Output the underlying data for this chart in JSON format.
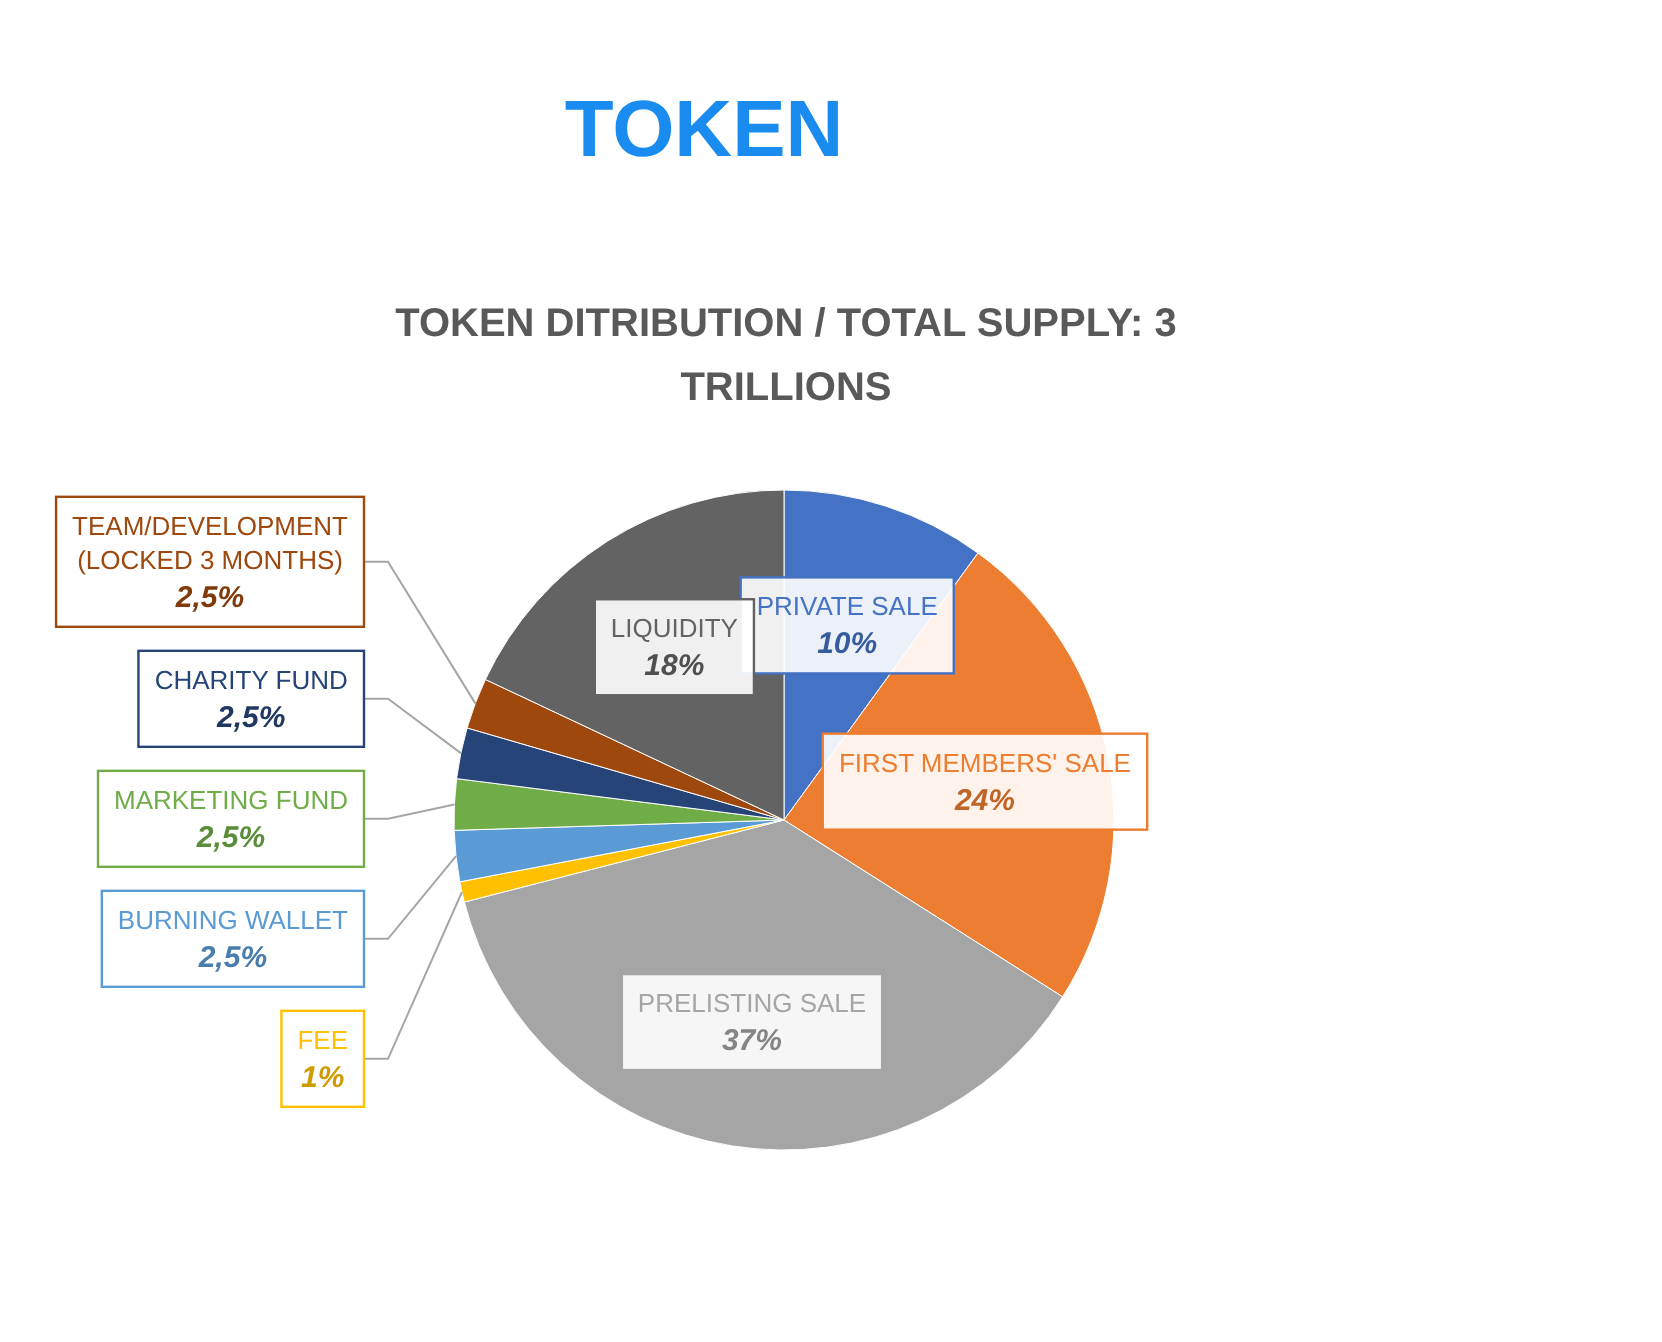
{
  "chart_data": {
    "type": "pie",
    "title": "TOKEN",
    "subtitle": "TOKEN DITRIBUTION / TOTAL SUPPLY: 3 TRILLIONS",
    "categories": [
      "PRIVATE SALE",
      "FIRST MEMBERS' SALE",
      "PRELISTING SALE",
      "FEE",
      "BURNING WALLET",
      "MARKETING FUND",
      "CHARITY FUND",
      "TEAM/DEVELOPMENT (LOCKED 3 MONTHS)",
      "LIQUIDITY"
    ],
    "values": [
      10,
      24,
      37,
      1,
      2.5,
      2.5,
      2.5,
      2.5,
      18
    ],
    "value_labels": [
      "10%",
      "24%",
      "37%",
      "1%",
      "2,5%",
      "2,5%",
      "2,5%",
      "2,5%",
      "18%"
    ],
    "colors": [
      "#4472c4",
      "#ed7d31",
      "#a5a5a5",
      "#ffc000",
      "#5b9bd5",
      "#70ad47",
      "#264478",
      "#9e480e",
      "#636363"
    ]
  }
}
